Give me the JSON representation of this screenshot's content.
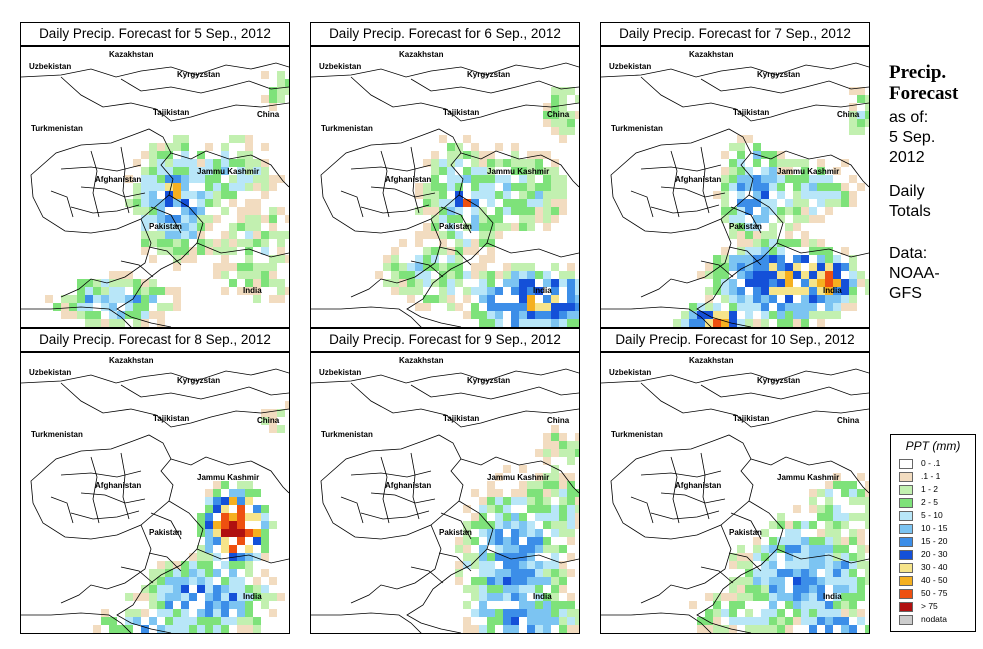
{
  "panels": [
    {
      "title": "Daily Precip. Forecast for  5 Sep., 2012"
    },
    {
      "title": "Daily Precip. Forecast for  6 Sep., 2012"
    },
    {
      "title": "Daily Precip. Forecast for  7 Sep., 2012"
    },
    {
      "title": "Daily Precip. Forecast for  8 Sep., 2012"
    },
    {
      "title": "Daily Precip. Forecast for  9 Sep., 2012"
    },
    {
      "title": "Daily Precip. Forecast for  10 Sep., 2012"
    }
  ],
  "map_labels": {
    "uzbekistan": "Uzbekistan",
    "kazakhstan": "Kazakhstan",
    "kyrgyzstan": "Kyrgyzstan",
    "tajikistan": "Tajikistan",
    "turkmenistan": "Turkmenistan",
    "china": "China",
    "jammu_kashmir": "Jammu Kashmir",
    "afghanistan": "Afghanistan",
    "pakistan": "Pakistan",
    "india": "India"
  },
  "sidebar": {
    "title_line1": "Precip.",
    "title_line2": "Forecast",
    "asof_line1": "as of:",
    "asof_line2": "5 Sep.",
    "asof_line3": "2012",
    "daily_line1": "Daily",
    "daily_line2": "Totals",
    "data_line1": "Data:",
    "data_line2": "NOAA-",
    "data_line3": "GFS"
  },
  "legend": {
    "title": "PPT (mm)",
    "items": [
      {
        "label": "0 - .1",
        "color": "#ffffff"
      },
      {
        "label": ".1 - 1",
        "color": "#f2dcc0"
      },
      {
        "label": "1 - 2",
        "color": "#c2f0b0"
      },
      {
        "label": "2 - 5",
        "color": "#7ee27a"
      },
      {
        "label": "5 - 10",
        "color": "#b8e6f8"
      },
      {
        "label": "10 - 15",
        "color": "#7cc4f2"
      },
      {
        "label": "15 - 20",
        "color": "#3c8ee8"
      },
      {
        "label": "20 - 30",
        "color": "#1450d8"
      },
      {
        "label": "30 - 40",
        "color": "#f6e48a"
      },
      {
        "label": "40 - 50",
        "color": "#f5b020"
      },
      {
        "label": "50 - 75",
        "color": "#ee5010"
      },
      {
        "label": "> 75",
        "color": "#b01010"
      },
      {
        "label": "nodata",
        "color": "#cccccc"
      }
    ]
  }
}
